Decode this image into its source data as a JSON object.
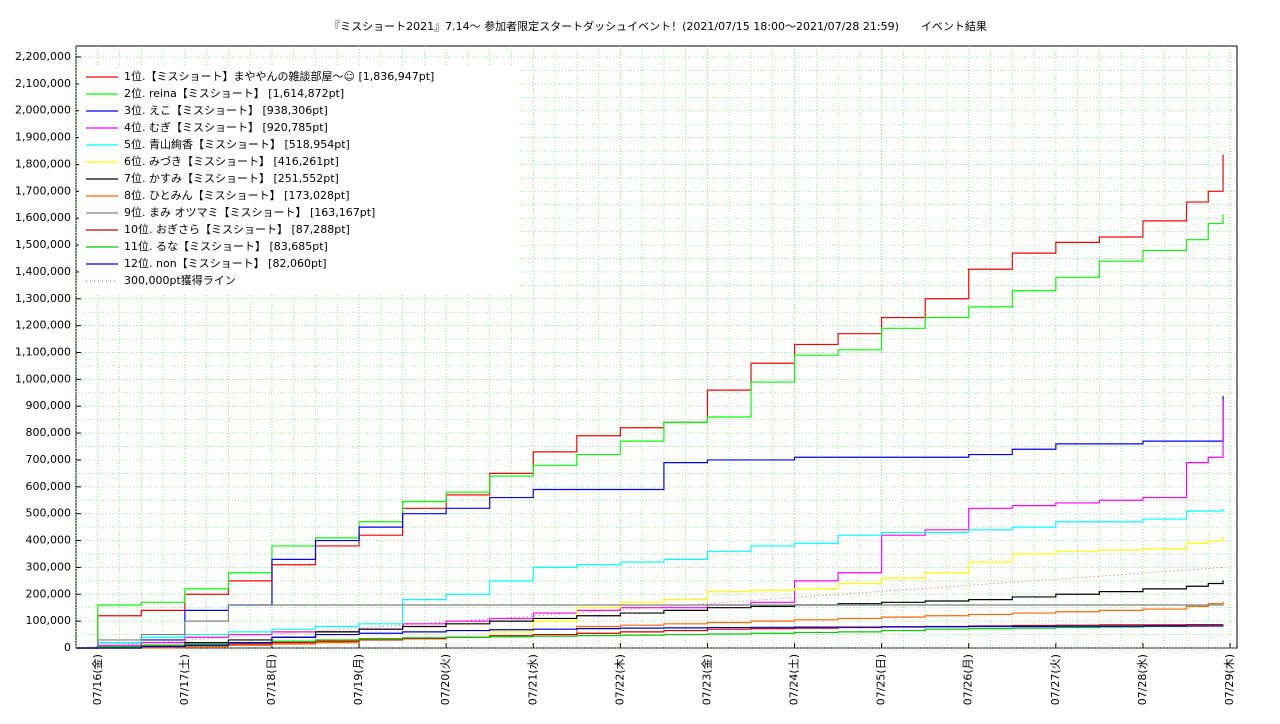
{
  "chart_data": {
    "type": "line",
    "title": "『ミスショート2021』7.14～ 参加者限定スタートダッシュイベント！(2021/07/15 18:00～2021/07/28 21:59)　　イベント結果",
    "x": [
      15.75,
      16,
      16.5,
      17,
      17.5,
      18,
      18.5,
      19,
      19.5,
      20,
      20.5,
      21,
      21.5,
      22,
      22.5,
      23,
      23.5,
      24,
      24.5,
      25,
      25.5,
      26,
      26.5,
      27,
      27.5,
      28,
      28.5,
      28.75,
      28.92
    ],
    "xlim": [
      15.75,
      29.08
    ],
    "xticks": [
      {
        "value": 16,
        "label": "07/16(金)"
      },
      {
        "value": 17,
        "label": "07/17(土)"
      },
      {
        "value": 18,
        "label": "07/18(日)"
      },
      {
        "value": 19,
        "label": "07/19(月)"
      },
      {
        "value": 20,
        "label": "07/20(火)"
      },
      {
        "value": 21,
        "label": "07/21(水)"
      },
      {
        "value": 22,
        "label": "07/22(木)"
      },
      {
        "value": 23,
        "label": "07/23(金)"
      },
      {
        "value": 24,
        "label": "07/24(土)"
      },
      {
        "value": 25,
        "label": "07/25(日)"
      },
      {
        "value": 26,
        "label": "07/26(月)"
      },
      {
        "value": 27,
        "label": "07/27(火)"
      },
      {
        "value": 28,
        "label": "07/28(水)"
      },
      {
        "value": 29,
        "label": "07/29(木)"
      }
    ],
    "ylim": [
      0,
      2241000
    ],
    "yticks": [
      0,
      {
        "value": 100000,
        "label": "100,000"
      },
      {
        "value": 200000,
        "label": "200,000"
      },
      {
        "value": 300000,
        "label": "300,000"
      },
      {
        "value": 400000,
        "label": "400,000"
      },
      {
        "value": 500000,
        "label": "500,000"
      },
      {
        "value": 600000,
        "label": "600,000"
      },
      {
        "value": 700000,
        "label": "700,000"
      },
      {
        "value": 800000,
        "label": "800,000"
      },
      {
        "value": 900000,
        "label": "900,000"
      },
      {
        "value": 1000000,
        "label": "1,000,000"
      },
      {
        "value": 1100000,
        "label": "1,100,000"
      },
      {
        "value": 1200000,
        "label": "1,200,000"
      },
      {
        "value": 1300000,
        "label": "1,300,000"
      },
      {
        "value": 1400000,
        "label": "1,400,000"
      },
      {
        "value": 1500000,
        "label": "1,500,000"
      },
      {
        "value": 1600000,
        "label": "1,600,000"
      },
      {
        "value": 1700000,
        "label": "1,700,000"
      },
      {
        "value": 1800000,
        "label": "1,800,000"
      },
      {
        "value": 1900000,
        "label": "1,900,000"
      },
      {
        "value": 2000000,
        "label": "2,000,000"
      },
      {
        "value": 2100000,
        "label": "2,100,000"
      },
      {
        "value": 2200000,
        "label": "2,200,000"
      }
    ],
    "grid": true,
    "legend": "upper left",
    "series": [
      {
        "name": "1位.【ミスショート】まややんの雑談部屋～☺ [1,836,947pt]",
        "color": "#ff0000",
        "values": [
          0,
          120000,
          140000,
          200000,
          250000,
          310000,
          380000,
          420000,
          520000,
          570000,
          650000,
          730000,
          790000,
          820000,
          840000,
          960000,
          1060000,
          1130000,
          1170000,
          1230000,
          1300000,
          1410000,
          1470000,
          1510000,
          1530000,
          1590000,
          1660000,
          1700000,
          1836947
        ]
      },
      {
        "name": "2位. reina【ミスショート】 [1,614,872pt]",
        "color": "#00ff00",
        "values": [
          0,
          160000,
          170000,
          220000,
          280000,
          380000,
          410000,
          470000,
          545000,
          580000,
          640000,
          680000,
          720000,
          770000,
          840000,
          860000,
          990000,
          1090000,
          1110000,
          1190000,
          1230000,
          1270000,
          1330000,
          1380000,
          1440000,
          1480000,
          1520000,
          1580000,
          1614872
        ]
      },
      {
        "name": "3位. えこ【ミスショート】 [938,306pt]",
        "color": "#0000ff",
        "values": [
          0,
          20000,
          30000,
          140000,
          160000,
          330000,
          400000,
          450000,
          500000,
          520000,
          560000,
          590000,
          590000,
          590000,
          690000,
          700000,
          700000,
          710000,
          710000,
          710000,
          710000,
          720000,
          740000,
          760000,
          760000,
          770000,
          770000,
          770000,
          938306
        ]
      },
      {
        "name": "4位. むぎ【ミスショート】 [920,785pt]",
        "color": "#ff00ff",
        "values": [
          0,
          10000,
          20000,
          40000,
          50000,
          60000,
          60000,
          70000,
          90000,
          100000,
          110000,
          130000,
          140000,
          150000,
          150000,
          160000,
          170000,
          250000,
          280000,
          420000,
          440000,
          520000,
          530000,
          540000,
          550000,
          560000,
          690000,
          710000,
          920785
        ]
      },
      {
        "name": "5位. 青山絢香【ミスショート】 [518,954pt]",
        "color": "#00ffff",
        "values": [
          0,
          20000,
          40000,
          50000,
          60000,
          70000,
          80000,
          90000,
          180000,
          200000,
          250000,
          300000,
          310000,
          320000,
          330000,
          360000,
          380000,
          390000,
          420000,
          430000,
          430000,
          440000,
          450000,
          470000,
          470000,
          480000,
          510000,
          510000,
          518954
        ]
      },
      {
        "name": "6位. みづき【ミスショート】 [416,261pt]",
        "color": "#ffff00",
        "values": [
          0,
          0,
          5000,
          10000,
          15000,
          20000,
          25000,
          30000,
          35000,
          40000,
          60000,
          100000,
          150000,
          170000,
          180000,
          210000,
          215000,
          220000,
          240000,
          260000,
          280000,
          320000,
          350000,
          360000,
          365000,
          370000,
          390000,
          400000,
          416261
        ]
      },
      {
        "name": "7位. かすみ【ミスショート】 [251,552pt]",
        "color": "#000000",
        "values": [
          0,
          5000,
          10000,
          20000,
          30000,
          40000,
          60000,
          70000,
          80000,
          90000,
          100000,
          110000,
          120000,
          130000,
          140000,
          150000,
          155000,
          160000,
          165000,
          170000,
          175000,
          180000,
          190000,
          200000,
          210000,
          220000,
          230000,
          240000,
          251552
        ]
      },
      {
        "name": "8位. ひとみん【ミスショート】 [173,028pt]",
        "color": "#ff6600",
        "values": [
          0,
          0,
          0,
          5000,
          10000,
          15000,
          20000,
          30000,
          35000,
          40000,
          45000,
          50000,
          80000,
          85000,
          90000,
          95000,
          100000,
          105000,
          110000,
          115000,
          120000,
          125000,
          130000,
          135000,
          140000,
          145000,
          155000,
          165000,
          173028
        ]
      },
      {
        "name": "9位. まみ オツマミ【ミスショート】 [163,167pt]",
        "color": "#808080",
        "values": [
          0,
          30000,
          50000,
          100000,
          160000,
          160000,
          160000,
          160000,
          160000,
          160000,
          160000,
          160000,
          160000,
          160000,
          160000,
          160000,
          160000,
          160000,
          160000,
          160000,
          160000,
          160000,
          160000,
          160000,
          160000,
          160000,
          160000,
          160000,
          163167
        ]
      },
      {
        "name": "10位. おぎさら【ミスショート】 [87,288pt]",
        "color": "#cc0000",
        "values": [
          0,
          0,
          5000,
          10000,
          15000,
          20000,
          25000,
          30000,
          35000,
          40000,
          45000,
          50000,
          55000,
          60000,
          65000,
          70000,
          72000,
          74000,
          76000,
          78000,
          80000,
          82000,
          84000,
          85000,
          86000,
          86000,
          87000,
          87000,
          87288
        ]
      },
      {
        "name": "11位. るな【ミスショート】 [83,685pt]",
        "color": "#00cc00",
        "values": [
          0,
          5000,
          10000,
          15000,
          20000,
          25000,
          30000,
          35000,
          38000,
          40000,
          42000,
          44000,
          46000,
          48000,
          50000,
          52000,
          55000,
          58000,
          60000,
          65000,
          70000,
          72000,
          74000,
          76000,
          78000,
          80000,
          82000,
          83000,
          83685
        ]
      },
      {
        "name": "12位. non【ミスショート】 [82,060pt]",
        "color": "#0000cc",
        "values": [
          0,
          0,
          5000,
          10000,
          20000,
          40000,
          50000,
          55000,
          60000,
          65000,
          68000,
          70000,
          72000,
          74000,
          75000,
          76000,
          77000,
          78000,
          78000,
          79000,
          79000,
          80000,
          80000,
          81000,
          81000,
          82000,
          82000,
          82000,
          82060
        ]
      },
      {
        "name": "300,000pt獲得ライン",
        "color": "#cc6666",
        "dashed": true,
        "x": [
          15.75,
          28.92
        ],
        "values": [
          0,
          300000
        ]
      }
    ]
  }
}
